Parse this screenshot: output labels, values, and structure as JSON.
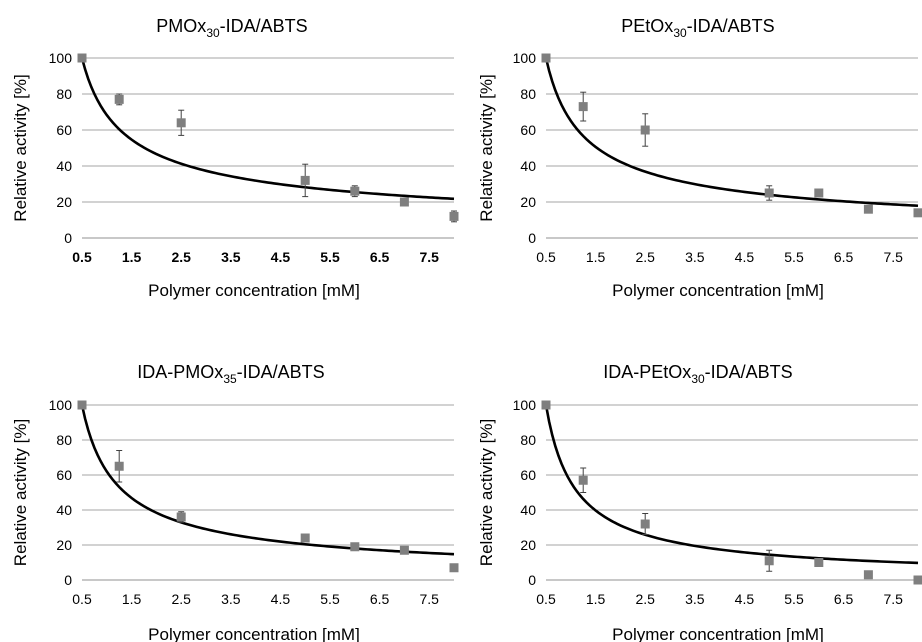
{
  "figure": {
    "columns": 2
  },
  "chart_data": [
    {
      "type": "scatter",
      "title": "PMOx30-IDA/ABTS",
      "title_parts": {
        "pre": "PMOx",
        "sub": "30",
        "post": "-IDA/ABTS"
      },
      "xlabel": "Polymer concentration [mM]",
      "ylabel": "Relative activity [%]",
      "xlim": [
        0.5,
        8
      ],
      "ylim": [
        0,
        100
      ],
      "xticks": [
        "0.5",
        "1.5",
        "2.5",
        "3.5",
        "4.5",
        "5.5",
        "6.5",
        "7.5"
      ],
      "yticks": [
        "0",
        "20",
        "40",
        "60",
        "80",
        "100"
      ],
      "xtick_bold": true,
      "grid": true,
      "marker_color": "#7f7f7f",
      "fit_color": "#000000",
      "points": [
        {
          "x": 0.5,
          "y": 100,
          "err": 0
        },
        {
          "x": 1.25,
          "y": 77,
          "err": 3
        },
        {
          "x": 2.5,
          "y": 64,
          "err": 7
        },
        {
          "x": 5,
          "y": 32,
          "err": 9
        },
        {
          "x": 6,
          "y": 26,
          "err": 3
        },
        {
          "x": 7,
          "y": 20,
          "err": 0
        },
        {
          "x": 8,
          "y": 12,
          "err": 3
        }
      ],
      "fit": {
        "model": "power",
        "x0": 0.5,
        "y0": 100,
        "exponent": -0.55
      }
    },
    {
      "type": "scatter",
      "title": "PEtOx30-IDA/ABTS",
      "title_parts": {
        "pre": "PEtOx",
        "sub": "30",
        "post": "-IDA/ABTS"
      },
      "xlabel": "Polymer concentration [mM]",
      "ylabel": "Relative activity [%]",
      "xlim": [
        0.5,
        8
      ],
      "ylim": [
        0,
        100
      ],
      "xticks": [
        "0.5",
        "1.5",
        "2.5",
        "3.5",
        "4.5",
        "5.5",
        "6.5",
        "7.5"
      ],
      "yticks": [
        "0",
        "20",
        "40",
        "60",
        "80",
        "100"
      ],
      "xtick_bold": false,
      "grid": true,
      "marker_color": "#7f7f7f",
      "fit_color": "#000000",
      "points": [
        {
          "x": 0.5,
          "y": 100,
          "err": 0
        },
        {
          "x": 1.25,
          "y": 73,
          "err": 8
        },
        {
          "x": 2.5,
          "y": 60,
          "err": 9
        },
        {
          "x": 5,
          "y": 25,
          "err": 4
        },
        {
          "x": 6,
          "y": 25,
          "err": 0
        },
        {
          "x": 7,
          "y": 16,
          "err": 0
        },
        {
          "x": 8,
          "y": 14,
          "err": 0
        }
      ],
      "fit": {
        "model": "power",
        "x0": 0.5,
        "y0": 100,
        "exponent": -0.62
      }
    },
    {
      "type": "scatter",
      "title": "IDA-PMOx35-IDA/ABTS",
      "title_parts": {
        "pre": "IDA-PMOx",
        "sub": "35",
        "post": "-IDA/ABTS"
      },
      "xlabel": "Polymer concentration [mM]",
      "ylabel": "Relative activity [%]",
      "xlim": [
        0.5,
        8
      ],
      "ylim": [
        0,
        100
      ],
      "xticks": [
        "0.5",
        "1.5",
        "2.5",
        "3.5",
        "4.5",
        "5.5",
        "6.5",
        "7.5"
      ],
      "yticks": [
        "0",
        "20",
        "40",
        "60",
        "80",
        "100"
      ],
      "xtick_bold": false,
      "grid": true,
      "marker_color": "#7f7f7f",
      "fit_color": "#000000",
      "points": [
        {
          "x": 0.5,
          "y": 100,
          "err": 0
        },
        {
          "x": 1.25,
          "y": 65,
          "err": 9
        },
        {
          "x": 2.5,
          "y": 36,
          "err": 3
        },
        {
          "x": 5,
          "y": 24,
          "err": 2
        },
        {
          "x": 6,
          "y": 19,
          "err": 0
        },
        {
          "x": 7,
          "y": 17,
          "err": 2
        },
        {
          "x": 8,
          "y": 7,
          "err": 0
        }
      ],
      "fit": {
        "model": "power",
        "x0": 0.5,
        "y0": 100,
        "exponent": -0.69
      }
    },
    {
      "type": "scatter",
      "title": "IDA-PEtOx30-IDA/ABTS",
      "title_parts": {
        "pre": "IDA-PEtOx",
        "sub": "30",
        "post": "-IDA/ABTS"
      },
      "xlabel": "Polymer concentration [mM]",
      "ylabel": "Relative activity [%]",
      "xlim": [
        0.5,
        8
      ],
      "ylim": [
        0,
        100
      ],
      "xticks": [
        "0.5",
        "1.5",
        "2.5",
        "3.5",
        "4.5",
        "5.5",
        "6.5",
        "7.5"
      ],
      "yticks": [
        "0",
        "20",
        "40",
        "60",
        "80",
        "100"
      ],
      "xtick_bold": false,
      "grid": true,
      "marker_color": "#7f7f7f",
      "fit_color": "#000000",
      "points": [
        {
          "x": 0.5,
          "y": 100,
          "err": 0
        },
        {
          "x": 1.25,
          "y": 57,
          "err": 7
        },
        {
          "x": 2.5,
          "y": 32,
          "err": 6
        },
        {
          "x": 5,
          "y": 11,
          "err": 6
        },
        {
          "x": 6,
          "y": 10,
          "err": 0
        },
        {
          "x": 7,
          "y": 3,
          "err": 0
        },
        {
          "x": 8,
          "y": 0,
          "err": 0
        }
      ],
      "fit": {
        "model": "power",
        "x0": 0.5,
        "y0": 100,
        "exponent": -0.84
      }
    }
  ]
}
